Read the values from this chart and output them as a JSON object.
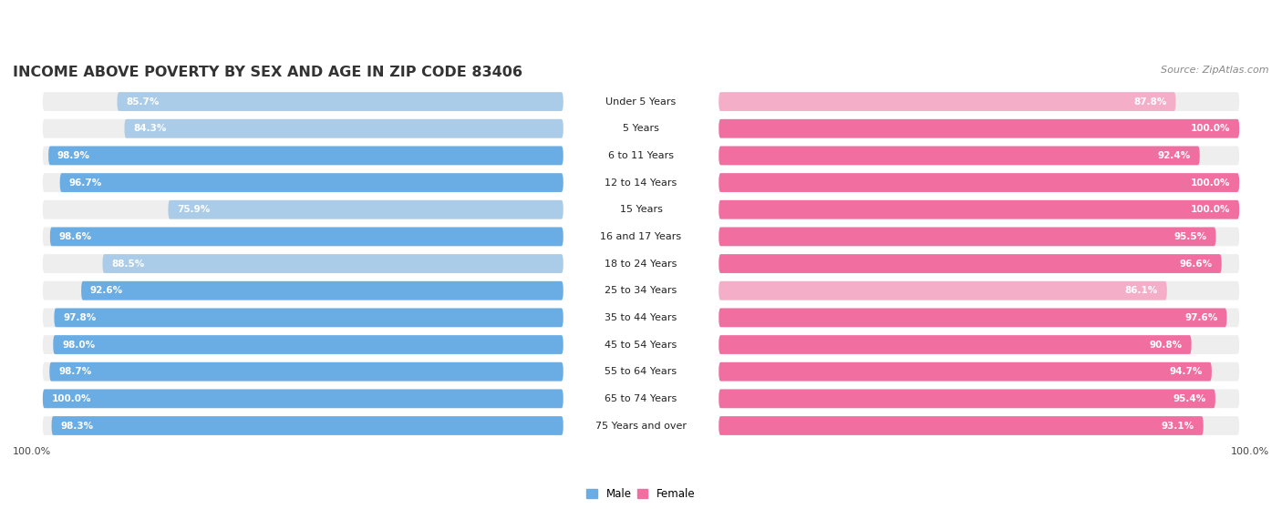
{
  "title": "INCOME ABOVE POVERTY BY SEX AND AGE IN ZIP CODE 83406",
  "source": "Source: ZipAtlas.com",
  "categories": [
    "Under 5 Years",
    "5 Years",
    "6 to 11 Years",
    "12 to 14 Years",
    "15 Years",
    "16 and 17 Years",
    "18 to 24 Years",
    "25 to 34 Years",
    "35 to 44 Years",
    "45 to 54 Years",
    "55 to 64 Years",
    "65 to 74 Years",
    "75 Years and over"
  ],
  "male_values": [
    85.7,
    84.3,
    98.9,
    96.7,
    75.9,
    98.6,
    88.5,
    92.6,
    97.8,
    98.0,
    98.7,
    100.0,
    98.3
  ],
  "female_values": [
    87.8,
    100.0,
    92.4,
    100.0,
    100.0,
    95.5,
    96.6,
    86.1,
    97.6,
    90.8,
    94.7,
    95.4,
    93.1
  ],
  "male_color_full": "#6aade4",
  "male_color_light": "#aacce8",
  "female_color_full": "#f06fa0",
  "female_color_light": "#f4aec8",
  "bg_color": "#ffffff",
  "row_bg_color": "#eeeeee",
  "axis_max": 100.0,
  "x_axis_label_left": "100.0%",
  "x_axis_label_right": "100.0%",
  "legend_male": "Male",
  "legend_female": "Female",
  "title_fontsize": 11.5,
  "source_fontsize": 8,
  "value_fontsize": 7.5,
  "category_fontsize": 8,
  "axis_label_fontsize": 8,
  "male_light_threshold": 90,
  "female_light_threshold": 90
}
